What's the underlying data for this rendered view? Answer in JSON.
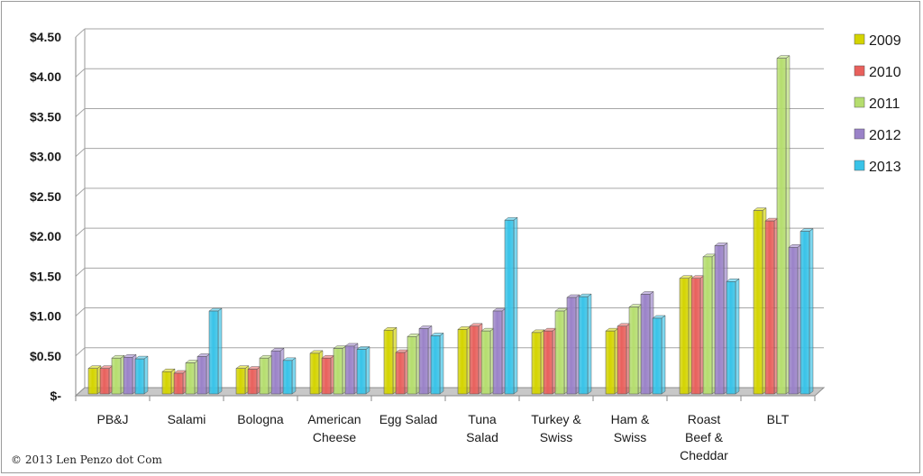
{
  "chart_data": {
    "type": "bar",
    "title": "",
    "xlabel": "",
    "ylabel": "",
    "ylim": [
      0,
      4.5
    ],
    "y_ticks": [
      0,
      0.5,
      1.0,
      1.5,
      2.0,
      2.5,
      3.0,
      3.5,
      4.0,
      4.5
    ],
    "y_tick_labels": [
      "$-",
      "$0.50",
      "$1.00",
      "$1.50",
      "$2.00",
      "$2.50",
      "$3.00",
      "$3.50",
      "$4.00",
      "$4.50"
    ],
    "categories": [
      [
        "PB&J"
      ],
      [
        "Salami"
      ],
      [
        "Bologna"
      ],
      [
        "American",
        "Cheese"
      ],
      [
        "Egg Salad"
      ],
      [
        "Tuna",
        "Salad"
      ],
      [
        "Turkey &",
        "Swiss"
      ],
      [
        "Ham &",
        "Swiss"
      ],
      [
        "Roast",
        "Beef &",
        "Cheddar"
      ],
      [
        "BLT"
      ]
    ],
    "series": [
      {
        "name": "2009",
        "color": "#d4d400",
        "values": [
          0.32,
          0.28,
          0.32,
          0.51,
          0.8,
          0.81,
          0.77,
          0.79,
          1.45,
          2.3
        ]
      },
      {
        "name": "2010",
        "color": "#e8605c",
        "values": [
          0.32,
          0.26,
          0.31,
          0.45,
          0.52,
          0.85,
          0.79,
          0.85,
          1.45,
          2.17
        ]
      },
      {
        "name": "2011",
        "color": "#b5dd6e",
        "values": [
          0.45,
          0.39,
          0.45,
          0.57,
          0.72,
          0.79,
          1.04,
          1.09,
          1.72,
          4.21
        ]
      },
      {
        "name": "2012",
        "color": "#9a82c8",
        "values": [
          0.46,
          0.47,
          0.54,
          0.6,
          0.82,
          1.04,
          1.21,
          1.25,
          1.86,
          1.84
        ]
      },
      {
        "name": "2013",
        "color": "#38c3e8",
        "values": [
          0.44,
          1.04,
          0.42,
          0.56,
          0.73,
          2.18,
          1.22,
          0.95,
          1.41,
          2.04
        ]
      }
    ],
    "legend_position": "right",
    "grid": true
  },
  "copyright": "© 2013 Len Penzo dot Com"
}
